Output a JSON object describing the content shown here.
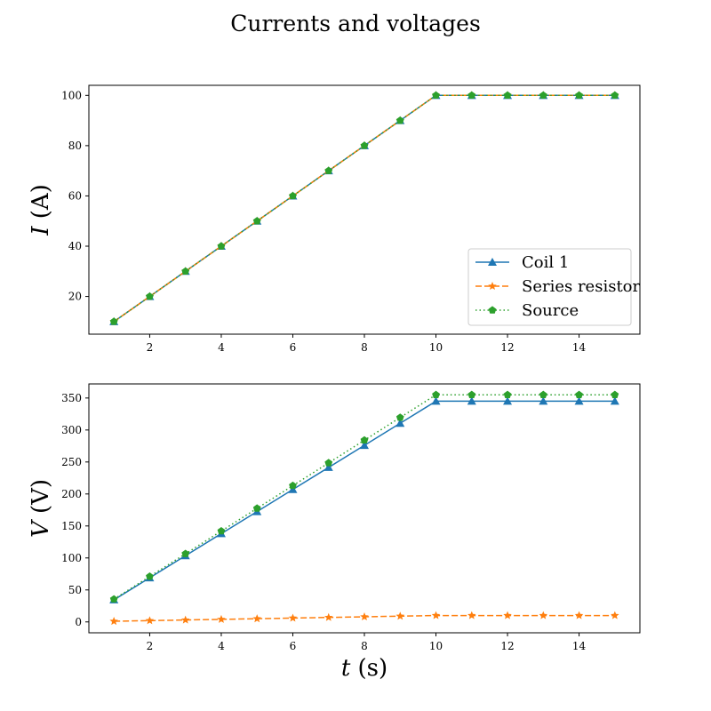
{
  "figure": {
    "title": "Currents and voltages"
  },
  "chart_data": [
    {
      "type": "line",
      "xlabel": "",
      "ylabel": "I (A)",
      "ylabel_var": "I",
      "ylabel_unit": " (A)",
      "xlim": [
        0.3,
        15.7
      ],
      "ylim": [
        5,
        104
      ],
      "xticks": [
        2,
        4,
        6,
        8,
        10,
        12,
        14
      ],
      "yticks": [
        20,
        40,
        60,
        80,
        100
      ],
      "legend_position": "lower-right",
      "x": [
        1,
        2,
        3,
        4,
        5,
        6,
        7,
        8,
        9,
        10,
        11,
        12,
        13,
        14,
        15
      ],
      "series": [
        {
          "name": "Coil 1",
          "color": "#1f77b4",
          "style": "solid",
          "marker": "triangle",
          "values": [
            10,
            20,
            30,
            40,
            50,
            60,
            70,
            80,
            90,
            100,
            100,
            100,
            100,
            100,
            100
          ]
        },
        {
          "name": "Series resistor",
          "color": "#ff7f0e",
          "style": "dashed",
          "marker": "star",
          "values": [
            10,
            20,
            30,
            40,
            50,
            60,
            70,
            80,
            90,
            100,
            100,
            100,
            100,
            100,
            100
          ]
        },
        {
          "name": "Source",
          "color": "#2ca02c",
          "style": "dotted",
          "marker": "pentagon",
          "values": [
            10,
            20,
            30,
            40,
            50,
            60,
            70,
            80,
            90,
            100,
            100,
            100,
            100,
            100,
            100
          ]
        }
      ]
    },
    {
      "type": "line",
      "xlabel": "t (s)",
      "xlabel_var": "t",
      "xlabel_unit": " (s)",
      "ylabel": "V (V)",
      "ylabel_var": "V",
      "ylabel_unit": " (V)",
      "xlim": [
        0.3,
        15.7
      ],
      "ylim": [
        -17,
        372
      ],
      "xticks": [
        2,
        4,
        6,
        8,
        10,
        12,
        14
      ],
      "yticks": [
        0,
        50,
        100,
        150,
        200,
        250,
        300,
        350
      ],
      "x": [
        1,
        2,
        3,
        4,
        5,
        6,
        7,
        8,
        9,
        10,
        11,
        12,
        13,
        14,
        15
      ],
      "series": [
        {
          "name": "Coil 1",
          "color": "#1f77b4",
          "style": "solid",
          "marker": "triangle",
          "values": [
            34.5,
            69,
            103.5,
            138,
            172.5,
            207,
            241.5,
            276,
            310.5,
            345,
            345,
            345,
            345,
            345,
            345
          ]
        },
        {
          "name": "Series resistor",
          "color": "#ff7f0e",
          "style": "dashed",
          "marker": "star",
          "values": [
            1,
            2,
            3,
            4,
            5,
            6,
            7,
            8,
            9,
            10,
            10,
            10,
            10,
            10,
            10
          ]
        },
        {
          "name": "Source",
          "color": "#2ca02c",
          "style": "dotted",
          "marker": "pentagon",
          "values": [
            35.5,
            71,
            106.5,
            142,
            177.5,
            213,
            248.5,
            284,
            319.5,
            355,
            355,
            355,
            355,
            355,
            355
          ]
        }
      ]
    }
  ]
}
